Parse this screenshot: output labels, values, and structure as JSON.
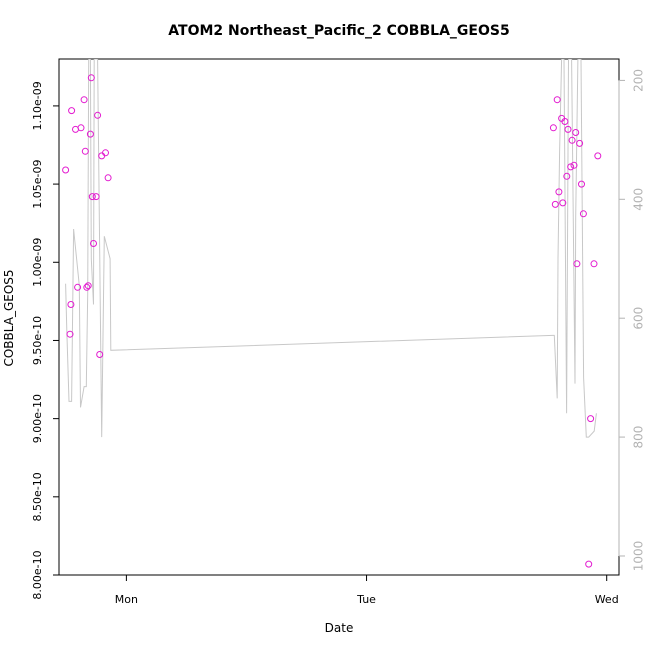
{
  "chart_data": {
    "type": "scatter",
    "title": "ATOM2 Northeast_Pacific_2 COBBLA_GEOS5",
    "xlabel": "Date",
    "ylabel": "COBBLA_GEOS5",
    "x_ticks": [
      {
        "label": "Mon",
        "day": 1
      },
      {
        "label": "Tue",
        "day": 2
      },
      {
        "label": "Wed",
        "day": 3
      }
    ],
    "x_range_days": [
      0.7194,
      3.0512
    ],
    "ylim": [
      8e-10,
      1.13e-09
    ],
    "y_ticks": [
      "8.00e-10",
      "8.50e-10",
      "9.00e-10",
      "9.50e-10",
      "1.00e-09",
      "1.05e-09",
      "1.10e-09"
    ],
    "y_tick_values": [
      8e-10,
      8.5e-10,
      9e-10,
      9.5e-10,
      1e-09,
      1.05e-09,
      1.1e-09
    ],
    "right_axis": {
      "reversed": true,
      "range": [
        1032,
        164
      ],
      "ticks": [
        "200",
        "400",
        "600",
        "800",
        "1000"
      ],
      "tick_values": [
        200,
        400,
        600,
        800,
        1000
      ]
    },
    "colors": {
      "points": "#e31bd0",
      "line": "#c8c8c8",
      "right_axis": "#b3b3b3"
    },
    "series": [
      {
        "values": [
          {
            "x": 0.747,
            "y": 1.059e-09
          },
          {
            "x": 0.765,
            "y": 9.54e-10
          },
          {
            "x": 0.769,
            "y": 9.73e-10
          },
          {
            "x": 0.772,
            "y": 1.097e-09
          },
          {
            "x": 0.788,
            "y": 1.085e-09
          },
          {
            "x": 0.797,
            "y": 9.84e-10
          },
          {
            "x": 0.811,
            "y": 1.086e-09
          },
          {
            "x": 0.824,
            "y": 1.104e-09
          },
          {
            "x": 0.829,
            "y": 1.071e-09
          },
          {
            "x": 0.835,
            "y": 9.84e-10
          },
          {
            "x": 0.841,
            "y": 9.85e-10
          },
          {
            "x": 0.85,
            "y": 1.082e-09
          },
          {
            "x": 0.854,
            "y": 1.118e-09
          },
          {
            "x": 0.858,
            "y": 1.042e-09
          },
          {
            "x": 0.863,
            "y": 1.012e-09
          },
          {
            "x": 0.874,
            "y": 1.042e-09
          },
          {
            "x": 0.88,
            "y": 1.094e-09
          },
          {
            "x": 0.889,
            "y": 9.41e-10
          },
          {
            "x": 0.897,
            "y": 1.068e-09
          },
          {
            "x": 0.913,
            "y": 1.07e-09
          },
          {
            "x": 0.924,
            "y": 1.054e-09
          },
          {
            "x": 2.778,
            "y": 1.086e-09
          },
          {
            "x": 2.786,
            "y": 1.037e-09
          },
          {
            "x": 2.794,
            "y": 1.104e-09
          },
          {
            "x": 2.801,
            "y": 1.045e-09
          },
          {
            "x": 2.812,
            "y": 1.092e-09
          },
          {
            "x": 2.817,
            "y": 1.038e-09
          },
          {
            "x": 2.826,
            "y": 1.09e-09
          },
          {
            "x": 2.834,
            "y": 1.055e-09
          },
          {
            "x": 2.839,
            "y": 1.085e-09
          },
          {
            "x": 2.85,
            "y": 1.061e-09
          },
          {
            "x": 2.856,
            "y": 1.078e-09
          },
          {
            "x": 2.864,
            "y": 1.062e-09
          },
          {
            "x": 2.871,
            "y": 1.083e-09
          },
          {
            "x": 2.876,
            "y": 9.99e-10
          },
          {
            "x": 2.887,
            "y": 1.076e-09
          },
          {
            "x": 2.895,
            "y": 1.05e-09
          },
          {
            "x": 2.903,
            "y": 1.031e-09
          },
          {
            "x": 2.925,
            "y": 8.07e-10
          },
          {
            "x": 2.933,
            "y": 9e-10
          },
          {
            "x": 2.947,
            "y": 9.99e-10
          },
          {
            "x": 2.963,
            "y": 1.068e-09
          }
        ]
      },
      {
        "axis": "right",
        "values": [
          {
            "x": 0.747,
            "y": 542
          },
          {
            "x": 0.752,
            "y": 620
          },
          {
            "x": 0.761,
            "y": 740
          },
          {
            "x": 0.772,
            "y": 740
          },
          {
            "x": 0.78,
            "y": 450
          },
          {
            "x": 0.804,
            "y": 545
          },
          {
            "x": 0.809,
            "y": 750
          },
          {
            "x": 0.824,
            "y": 715
          },
          {
            "x": 0.833,
            "y": 715
          },
          {
            "x": 0.839,
            "y": 560
          },
          {
            "x": 0.843,
            "y": 164
          },
          {
            "x": 0.85,
            "y": 164
          },
          {
            "x": 0.854,
            "y": 500
          },
          {
            "x": 0.863,
            "y": 577
          },
          {
            "x": 0.866,
            "y": 164
          },
          {
            "x": 0.88,
            "y": 164
          },
          {
            "x": 0.897,
            "y": 800
          },
          {
            "x": 0.908,
            "y": 462
          },
          {
            "x": 0.932,
            "y": 500
          },
          {
            "x": 0.935,
            "y": 654
          },
          {
            "x": 2.775,
            "y": 629
          },
          {
            "x": 2.782,
            "y": 629
          },
          {
            "x": 2.794,
            "y": 735
          },
          {
            "x": 2.797,
            "y": 500
          },
          {
            "x": 2.804,
            "y": 320
          },
          {
            "x": 2.812,
            "y": 164
          },
          {
            "x": 2.822,
            "y": 164
          },
          {
            "x": 2.833,
            "y": 760
          },
          {
            "x": 2.841,
            "y": 164
          },
          {
            "x": 2.854,
            "y": 164
          },
          {
            "x": 2.868,
            "y": 710
          },
          {
            "x": 2.871,
            "y": 430
          },
          {
            "x": 2.88,
            "y": 164
          },
          {
            "x": 2.893,
            "y": 164
          },
          {
            "x": 2.904,
            "y": 700
          },
          {
            "x": 2.915,
            "y": 800
          },
          {
            "x": 2.925,
            "y": 800
          },
          {
            "x": 2.948,
            "y": 790
          },
          {
            "x": 2.957,
            "y": 760
          }
        ]
      }
    ]
  }
}
